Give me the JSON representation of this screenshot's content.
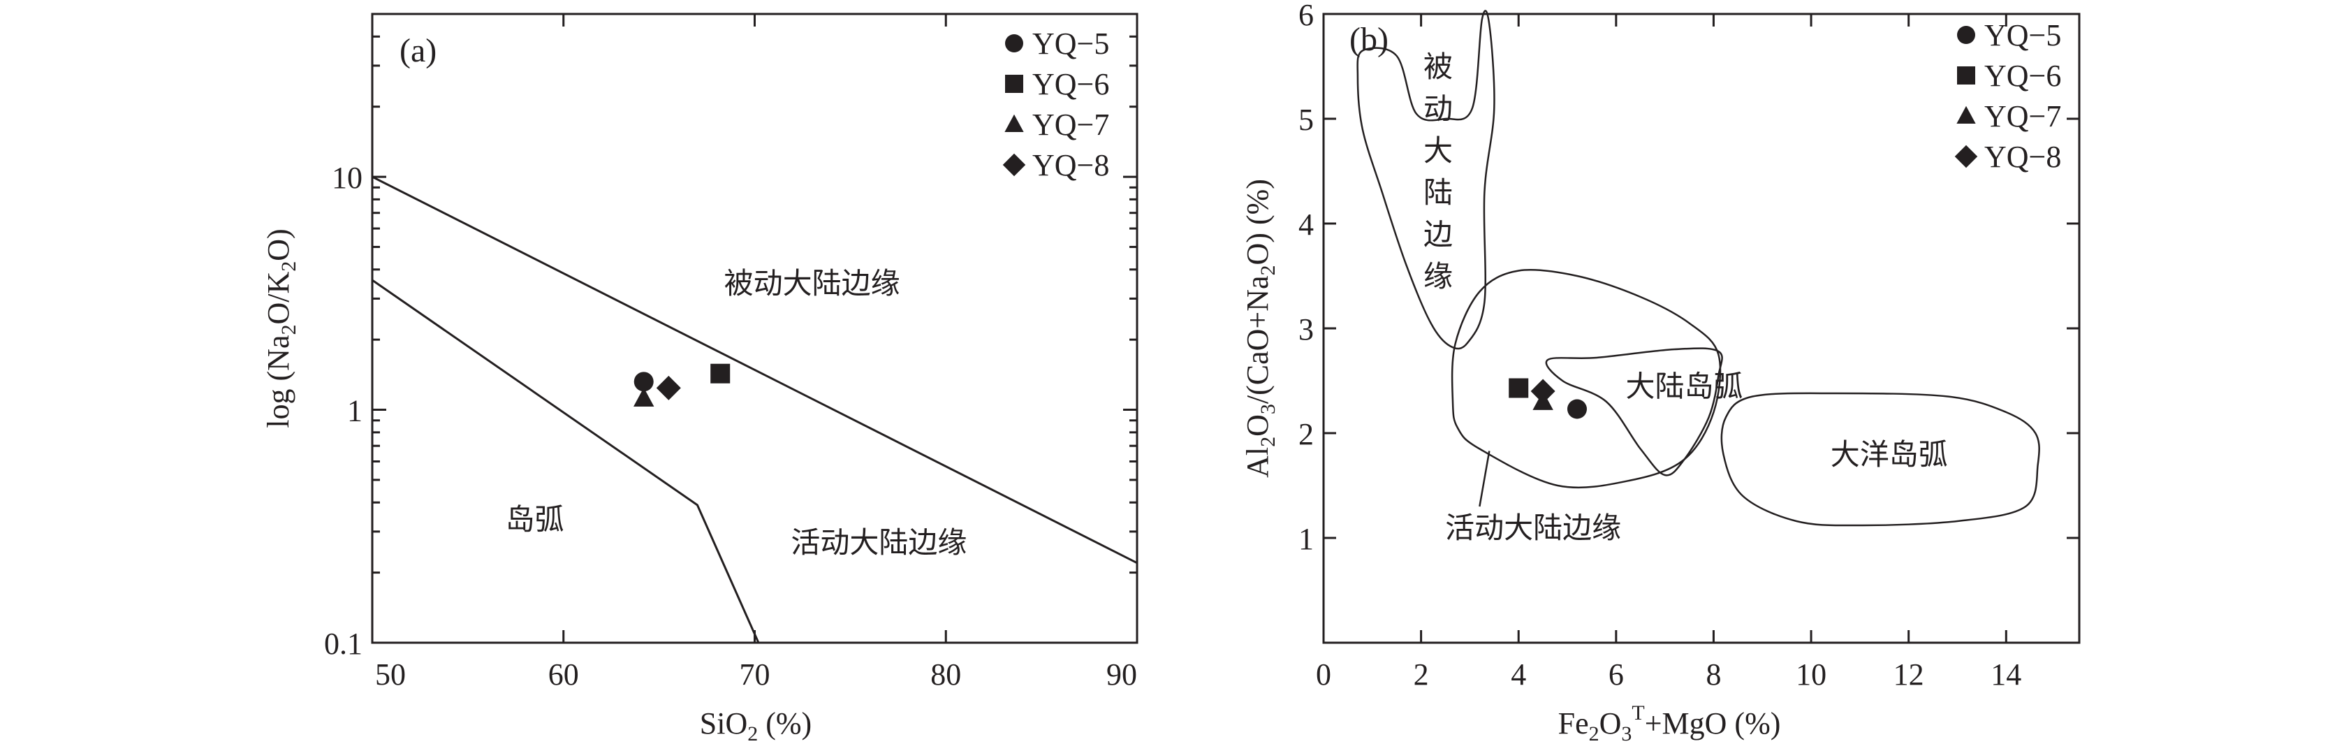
{
  "chart_data": [
    {
      "panel": "(a)",
      "type": "scatter",
      "xlabel_main": "SiO",
      "xlabel_sub": "2",
      "xlabel_tail": " (%)",
      "ylabel_main": "log (Na",
      "ylabel_sub1": "2",
      "ylabel_mid": "O/K",
      "ylabel_sub2": "2",
      "ylabel_tail": "O)",
      "xlim": [
        50,
        90
      ],
      "ylim": [
        0.1,
        50
      ],
      "y_scale": "log",
      "x_ticks": [
        "50",
        "60",
        "70",
        "80",
        "90"
      ],
      "y_ticks": [
        {
          "value": 0.1,
          "label": "0.1"
        },
        {
          "value": 1,
          "label": "1"
        },
        {
          "value": 10,
          "label": "10"
        }
      ],
      "legend_position": "top-right",
      "series": [
        {
          "name": "YQ−5",
          "marker": "circle",
          "x": 64.2,
          "y": 1.32
        },
        {
          "name": "YQ−6",
          "marker": "square",
          "x": 68.2,
          "y": 1.43
        },
        {
          "name": "YQ−7",
          "marker": "triangle",
          "x": 64.2,
          "y": 1.12
        },
        {
          "name": "YQ−8",
          "marker": "diamond",
          "x": 65.5,
          "y": 1.24
        }
      ],
      "boundaries": [
        {
          "points": [
            [
              50,
              10
            ],
            [
              90,
              0.22
            ]
          ]
        },
        {
          "points": [
            [
              50,
              3.6
            ],
            [
              67,
              0.39
            ],
            [
              70.2,
              0.1
            ]
          ]
        }
      ],
      "field_labels": [
        {
          "text": "被动大陆边缘",
          "x": 73,
          "y": 3.5
        },
        {
          "text": "岛弧",
          "x": 58.5,
          "y": 0.34
        },
        {
          "text": "活动大陆边缘",
          "x": 76.5,
          "y": 0.27
        }
      ]
    },
    {
      "panel": "(b)",
      "type": "scatter",
      "xlabel_main": "Fe",
      "xlabel_sub": "2",
      "xlabel_mid": "O",
      "xlabel_sub2": "3",
      "xlabel_sup": "T",
      "xlabel_tail": "+MgO (%)",
      "ylabel_main": "Al",
      "ylabel_sub1": "2",
      "ylabel_mid": "O",
      "ylabel_sub2": "3",
      "ylabel_mid2": "/(CaO+Na",
      "ylabel_sub3": "2",
      "ylabel_tail": "O) (%)",
      "xlim": [
        0,
        15.5
      ],
      "ylim": [
        0,
        6
      ],
      "x_ticks": [
        "0",
        "2",
        "4",
        "6",
        "8",
        "10",
        "12",
        "14"
      ],
      "y_ticks": [
        "1",
        "2",
        "3",
        "4",
        "5",
        "6"
      ],
      "legend_position": "top-right",
      "series": [
        {
          "name": "YQ−5",
          "marker": "circle",
          "x": 5.2,
          "y": 2.23
        },
        {
          "name": "YQ−6",
          "marker": "square",
          "x": 4.0,
          "y": 2.43
        },
        {
          "name": "YQ−7",
          "marker": "triangle",
          "x": 4.5,
          "y": 2.3
        },
        {
          "name": "YQ−8",
          "marker": "diamond",
          "x": 4.5,
          "y": 2.4
        }
      ],
      "fields": [
        {
          "name": "被动大陆边缘",
          "points": [
            [
              0.7,
              5.4
            ],
            [
              0.8,
              4.9
            ],
            [
              1.2,
              4.3
            ],
            [
              1.7,
              3.6
            ],
            [
              2.2,
              3.05
            ],
            [
              2.6,
              2.83
            ],
            [
              2.95,
              2.86
            ],
            [
              3.3,
              3.25
            ],
            [
              3.3,
              4.3
            ],
            [
              3.5,
              5.1
            ],
            [
              3.4,
              5.9
            ],
            [
              3.25,
              5.95
            ],
            [
              3.05,
              5.1
            ],
            [
              2.5,
              5.0
            ],
            [
              1.9,
              5.05
            ],
            [
              1.5,
              5.6
            ],
            [
              0.8,
              5.65
            ]
          ]
        },
        {
          "name": "活动大陆边缘",
          "points": [
            [
              2.65,
              2.3
            ],
            [
              2.7,
              2.85
            ],
            [
              3.2,
              3.35
            ],
            [
              4.0,
              3.55
            ],
            [
              5.2,
              3.5
            ],
            [
              6.5,
              3.3
            ],
            [
              7.5,
              3.05
            ],
            [
              8.1,
              2.75
            ],
            [
              8.0,
              2.2
            ],
            [
              7.4,
              1.75
            ],
            [
              6.3,
              1.55
            ],
            [
              4.8,
              1.5
            ],
            [
              3.2,
              1.85
            ],
            [
              2.75,
              2.05
            ]
          ]
        },
        {
          "name": "大陆岛弧",
          "points": [
            [
              4.6,
              2.7
            ],
            [
              4.9,
              2.5
            ],
            [
              5.8,
              2.3
            ],
            [
              6.5,
              1.85
            ],
            [
              7.0,
              1.6
            ],
            [
              7.4,
              1.75
            ],
            [
              7.9,
              2.15
            ],
            [
              8.1,
              2.55
            ],
            [
              8.1,
              2.78
            ],
            [
              7.2,
              2.8
            ],
            [
              5.6,
              2.72
            ]
          ]
        },
        {
          "name": "大洋岛弧",
          "points": [
            [
              8.2,
              1.8
            ],
            [
              8.25,
              2.15
            ],
            [
              8.8,
              2.35
            ],
            [
              10.5,
              2.38
            ],
            [
              12.8,
              2.35
            ],
            [
              14.0,
              2.2
            ],
            [
              14.6,
              2.0
            ],
            [
              14.65,
              1.7
            ],
            [
              14.4,
              1.3
            ],
            [
              13.0,
              1.16
            ],
            [
              11.0,
              1.12
            ],
            [
              9.7,
              1.16
            ],
            [
              8.6,
              1.4
            ]
          ]
        }
      ],
      "field_labels": [
        {
          "text": "被",
          "x": 2.35,
          "y": 5.5
        },
        {
          "text": "动",
          "x": 2.35,
          "y": 5.1
        },
        {
          "text": "大",
          "x": 2.35,
          "y": 4.7
        },
        {
          "text": "陆",
          "x": 2.35,
          "y": 4.3
        },
        {
          "text": "边",
          "x": 2.35,
          "y": 3.9
        },
        {
          "text": "缘",
          "x": 2.35,
          "y": 3.5
        },
        {
          "text": "大陆岛弧",
          "x": 7.4,
          "y": 2.45
        },
        {
          "text": "大洋岛弧",
          "x": 11.6,
          "y": 1.8
        },
        {
          "text": "活动大陆边缘",
          "x": 4.3,
          "y": 1.1
        }
      ],
      "leader_line": [
        [
          3.4,
          1.83
        ],
        [
          3.2,
          1.3
        ]
      ]
    }
  ]
}
